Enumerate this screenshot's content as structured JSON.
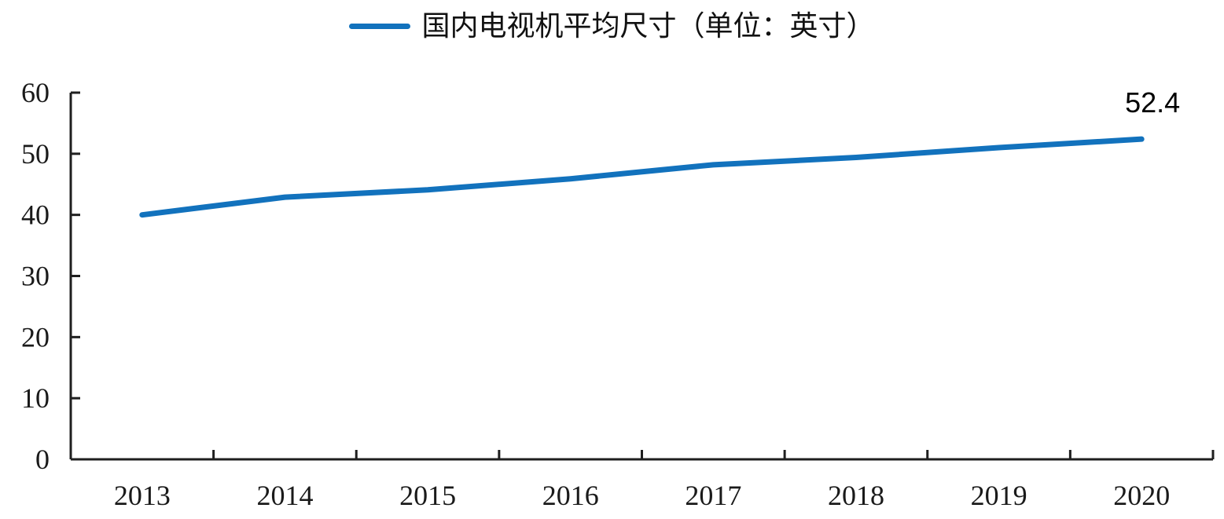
{
  "chart_data": {
    "type": "line",
    "legend": "国内电视机平均尺寸（单位：英寸）",
    "categories": [
      "2013",
      "2014",
      "2015",
      "2016",
      "2017",
      "2018",
      "2019",
      "2020"
    ],
    "values": [
      40,
      42.9,
      44.1,
      45.9,
      48.2,
      49.4,
      51,
      52.4
    ],
    "end_label": "52.4",
    "ylim": [
      0,
      60
    ],
    "ytick_step": 10,
    "yticks": [
      0,
      10,
      20,
      30,
      40,
      50,
      60
    ],
    "line_color": "#1272BD",
    "axis_color": "#1f1f1f",
    "legend_position": "top",
    "grid": "off"
  }
}
